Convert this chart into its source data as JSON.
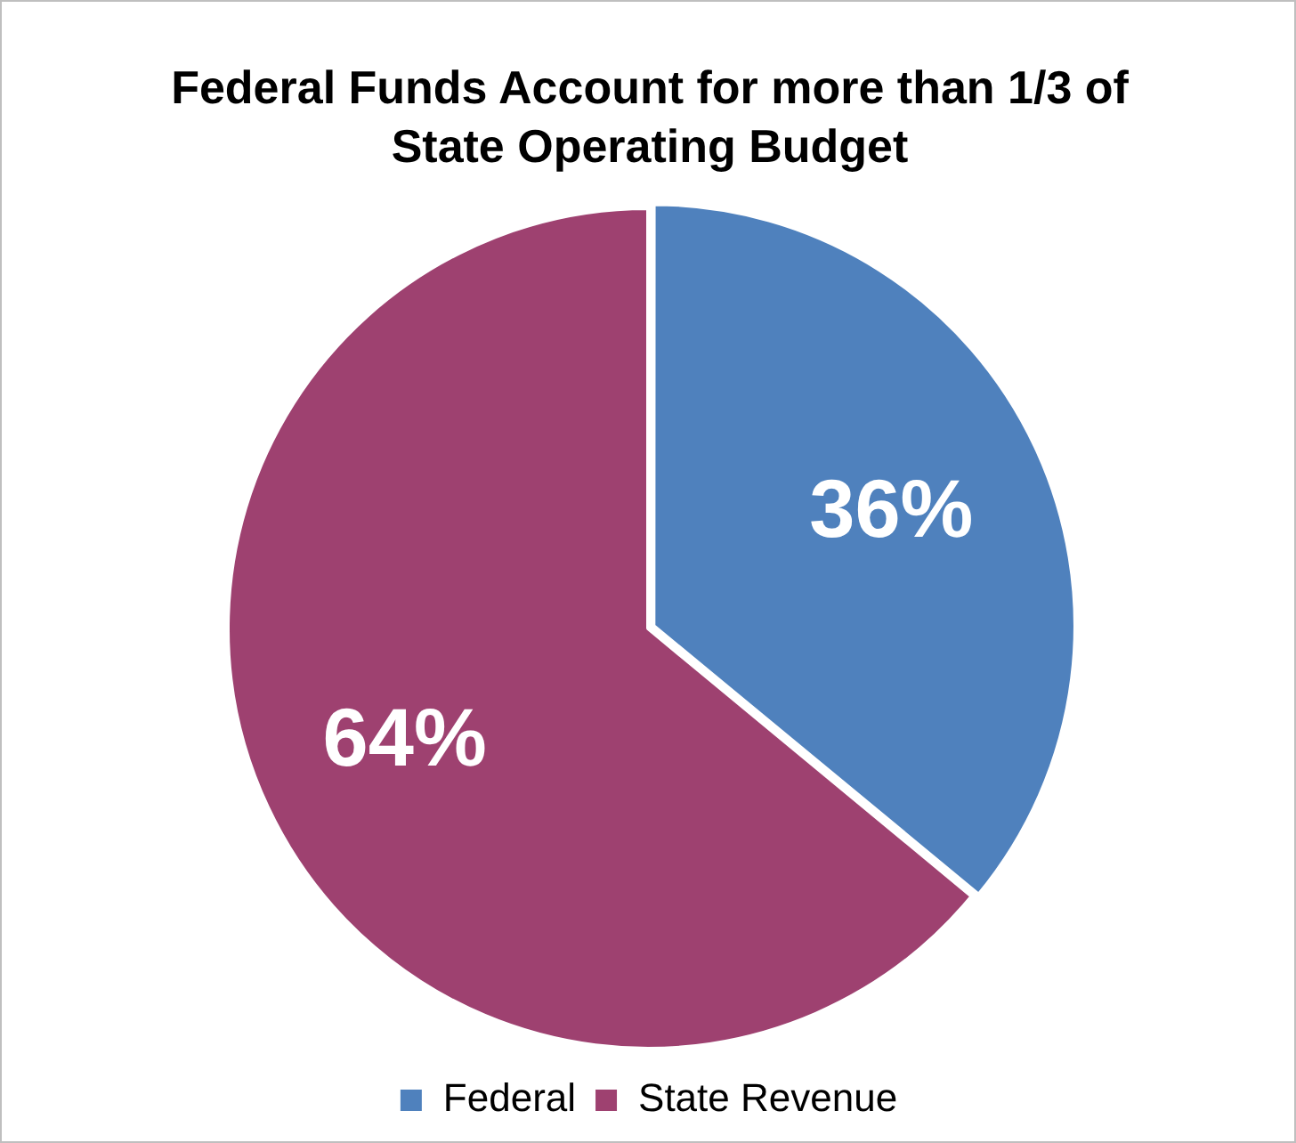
{
  "chart_data": {
    "type": "pie",
    "title": "Federal Funds Account for more than 1/3 of State Operating Budget",
    "categories": [
      "Federal",
      "State Revenue"
    ],
    "values": [
      36,
      64
    ],
    "colors": [
      "#4f81bd",
      "#9e4170"
    ],
    "value_labels": [
      "36%",
      "64%"
    ],
    "legend": "bottom"
  }
}
